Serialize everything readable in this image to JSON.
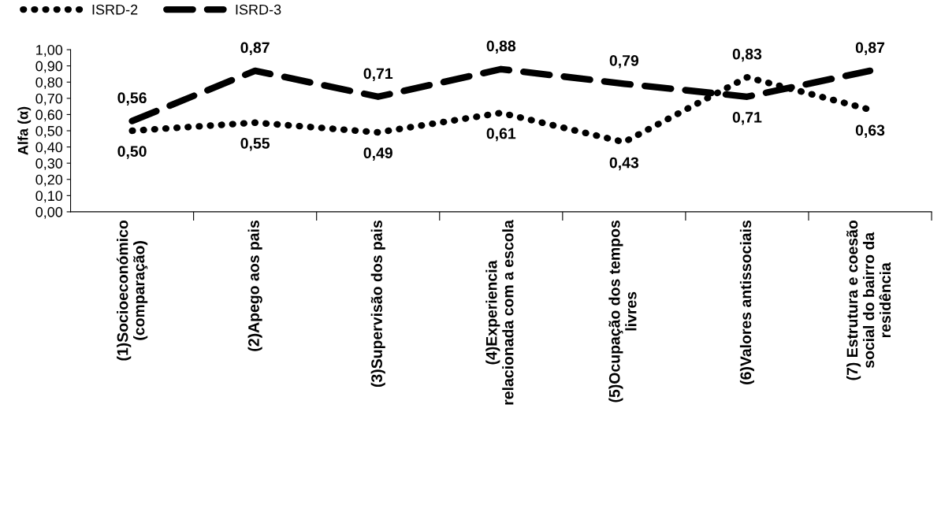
{
  "chart_data": {
    "type": "line",
    "ylabel": "Alfa (α)",
    "categories": [
      "(1)Socioeconómico\n(comparação)",
      "(2)Apego aos pais",
      "(3)Supervisão dos pais",
      "(4)Experiencia\nrelacionada com a escola",
      "(5)Ocupação dos tempos\nlivres",
      "(6)Valores antissociais",
      "(7) Estrutura e coesão\nsocial do bairro da\nresidência"
    ],
    "series": [
      {
        "name": "ISRD-2",
        "color": "#000000",
        "line_style": "dotted",
        "values": [
          0.5,
          0.55,
          0.49,
          0.61,
          0.43,
          0.83,
          0.63
        ],
        "value_labels": [
          "0,50",
          "0,55",
          "0,49",
          "0,61",
          "0,43",
          "0,83",
          "0,63"
        ]
      },
      {
        "name": "ISRD-3",
        "color": "#000000",
        "line_style": "dashed",
        "values": [
          0.56,
          0.87,
          0.71,
          0.88,
          0.79,
          0.71,
          0.87
        ],
        "value_labels": [
          "0,56",
          "0,87",
          "0,71",
          "0,88",
          "0,79",
          "0,71",
          "0,87"
        ]
      }
    ],
    "ylim": [
      0,
      1
    ],
    "yticks": [
      {
        "value": 0,
        "label": "0,00"
      },
      {
        "value": 0.1,
        "label": "0,10"
      },
      {
        "value": 0.2,
        "label": "0,20"
      },
      {
        "value": 0.3,
        "label": "0,30"
      },
      {
        "value": 0.4,
        "label": "0,40"
      },
      {
        "value": 0.5,
        "label": "0,50"
      },
      {
        "value": 0.6,
        "label": "0,60"
      },
      {
        "value": 0.7,
        "label": "0,70"
      },
      {
        "value": 0.8,
        "label": "0,80"
      },
      {
        "value": 0.9,
        "label": "0,90"
      },
      {
        "value": 1,
        "label": "1,00"
      }
    ],
    "grid": false,
    "legend": "top left",
    "marker": "none"
  }
}
